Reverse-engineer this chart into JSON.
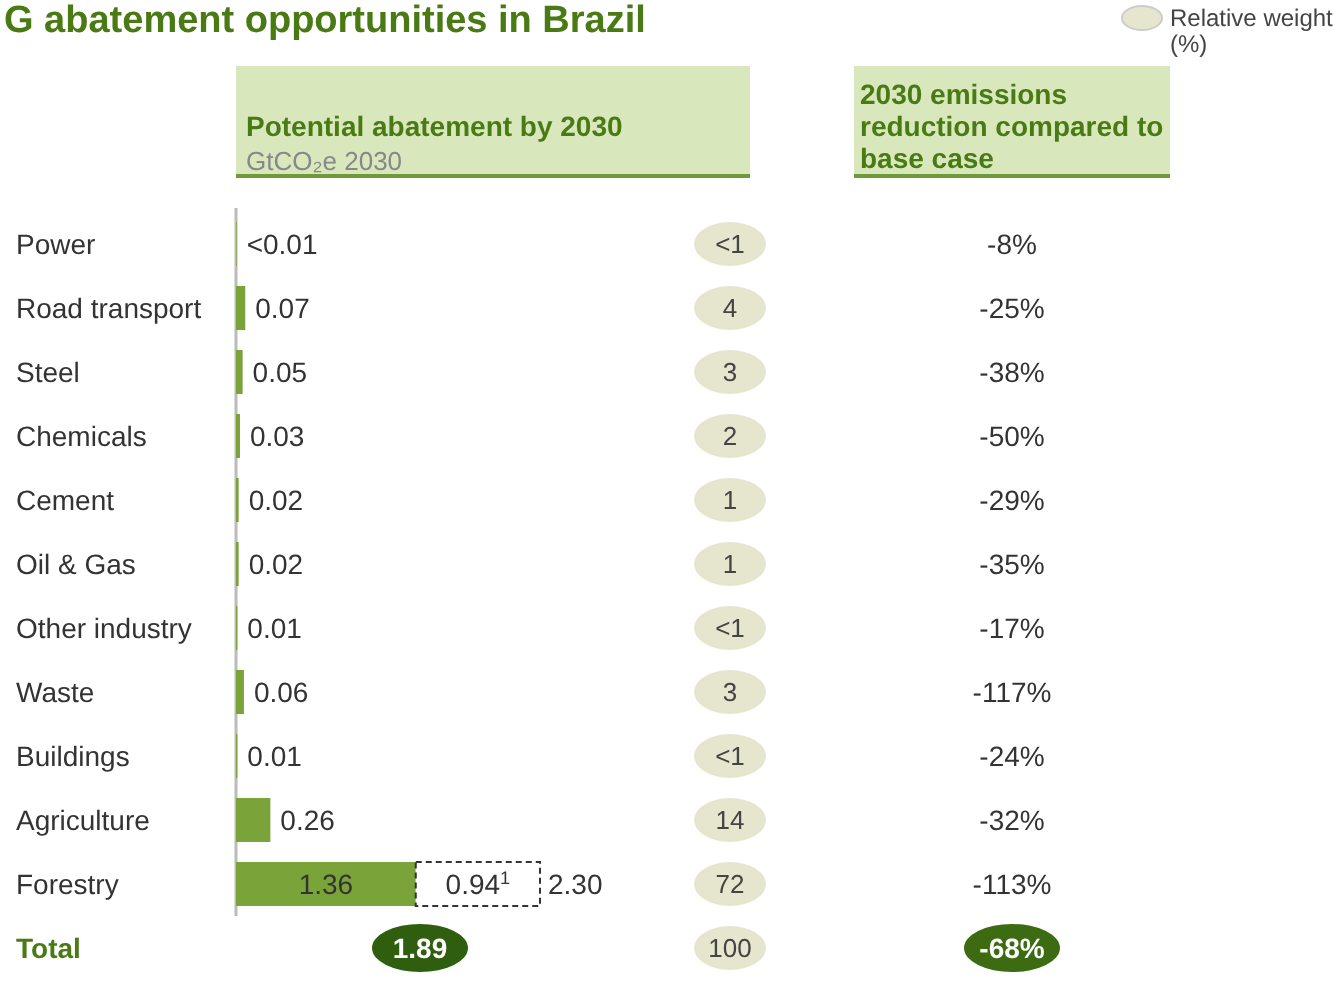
{
  "chart_data": [
    {
      "type": "bar",
      "title": "G abatement opportunities in Brazil",
      "xlabel": "Potential abatement by 2030",
      "subtitle": "GtCO₂e 2030",
      "orientation": "horizontal",
      "stacked": true,
      "categories": [
        "Power",
        "Road transport",
        "Steel",
        "Chemicals",
        "Cement",
        "Oil & Gas",
        "Other industry",
        "Waste",
        "Buildings",
        "Agriculture",
        "Forestry"
      ],
      "series": [
        {
          "color": "#7aa33a",
          "values": [
            0.005,
            0.07,
            0.05,
            0.03,
            0.02,
            0.02,
            0.01,
            0.06,
            0.01,
            0.26,
            1.36
          ],
          "value_labels": [
            "<0.01",
            "0.07",
            "0.05",
            "0.03",
            "0.02",
            "0.02",
            "0.01",
            "0.06",
            "0.01",
            "0.26",
            "1.36"
          ]
        },
        {
          "color": "#ffffff",
          "line_style": "dashed",
          "values": [
            null,
            null,
            null,
            null,
            null,
            null,
            null,
            null,
            null,
            null,
            0.94
          ],
          "value_labels": [
            null,
            null,
            null,
            null,
            null,
            null,
            null,
            null,
            null,
            null,
            "0.94$^{1}$"
          ]
        }
      ],
      "totals": [
        null,
        null,
        null,
        null,
        null,
        null,
        null,
        null,
        null,
        null,
        "2.30"
      ],
      "annotations": [
        "Total",
        "1.89"
      ]
    },
    {
      "type": "other",
      "legend_title": "Relative weight (%)",
      "color": "#e6e6cf",
      "values": [
        null,
        4,
        3,
        2,
        1,
        1,
        null,
        3,
        null,
        14,
        72,
        100
      ],
      "value_labels": [
        "<1",
        "4",
        "3",
        "2",
        "1",
        "1",
        "<1",
        "3",
        "<1",
        "14",
        "72",
        "100"
      ]
    },
    {
      "type": "other",
      "title": "2030 emissions reduction compared to base case",
      "values": [
        -8,
        -25,
        -38,
        -50,
        -29,
        -35,
        -17,
        -117,
        -24,
        -32,
        -113,
        -68
      ],
      "value_labels": [
        "-8%",
        "-25%",
        "-38%",
        "-50%",
        "-29%",
        "-35%",
        "-17%",
        "-117%",
        "-24%",
        "-32%",
        "-113%",
        "-68%"
      ],
      "colors": [
        null,
        null,
        null,
        null,
        null,
        null,
        null,
        null,
        null,
        null,
        null,
        "#3d6b12"
      ]
    }
  ]
}
